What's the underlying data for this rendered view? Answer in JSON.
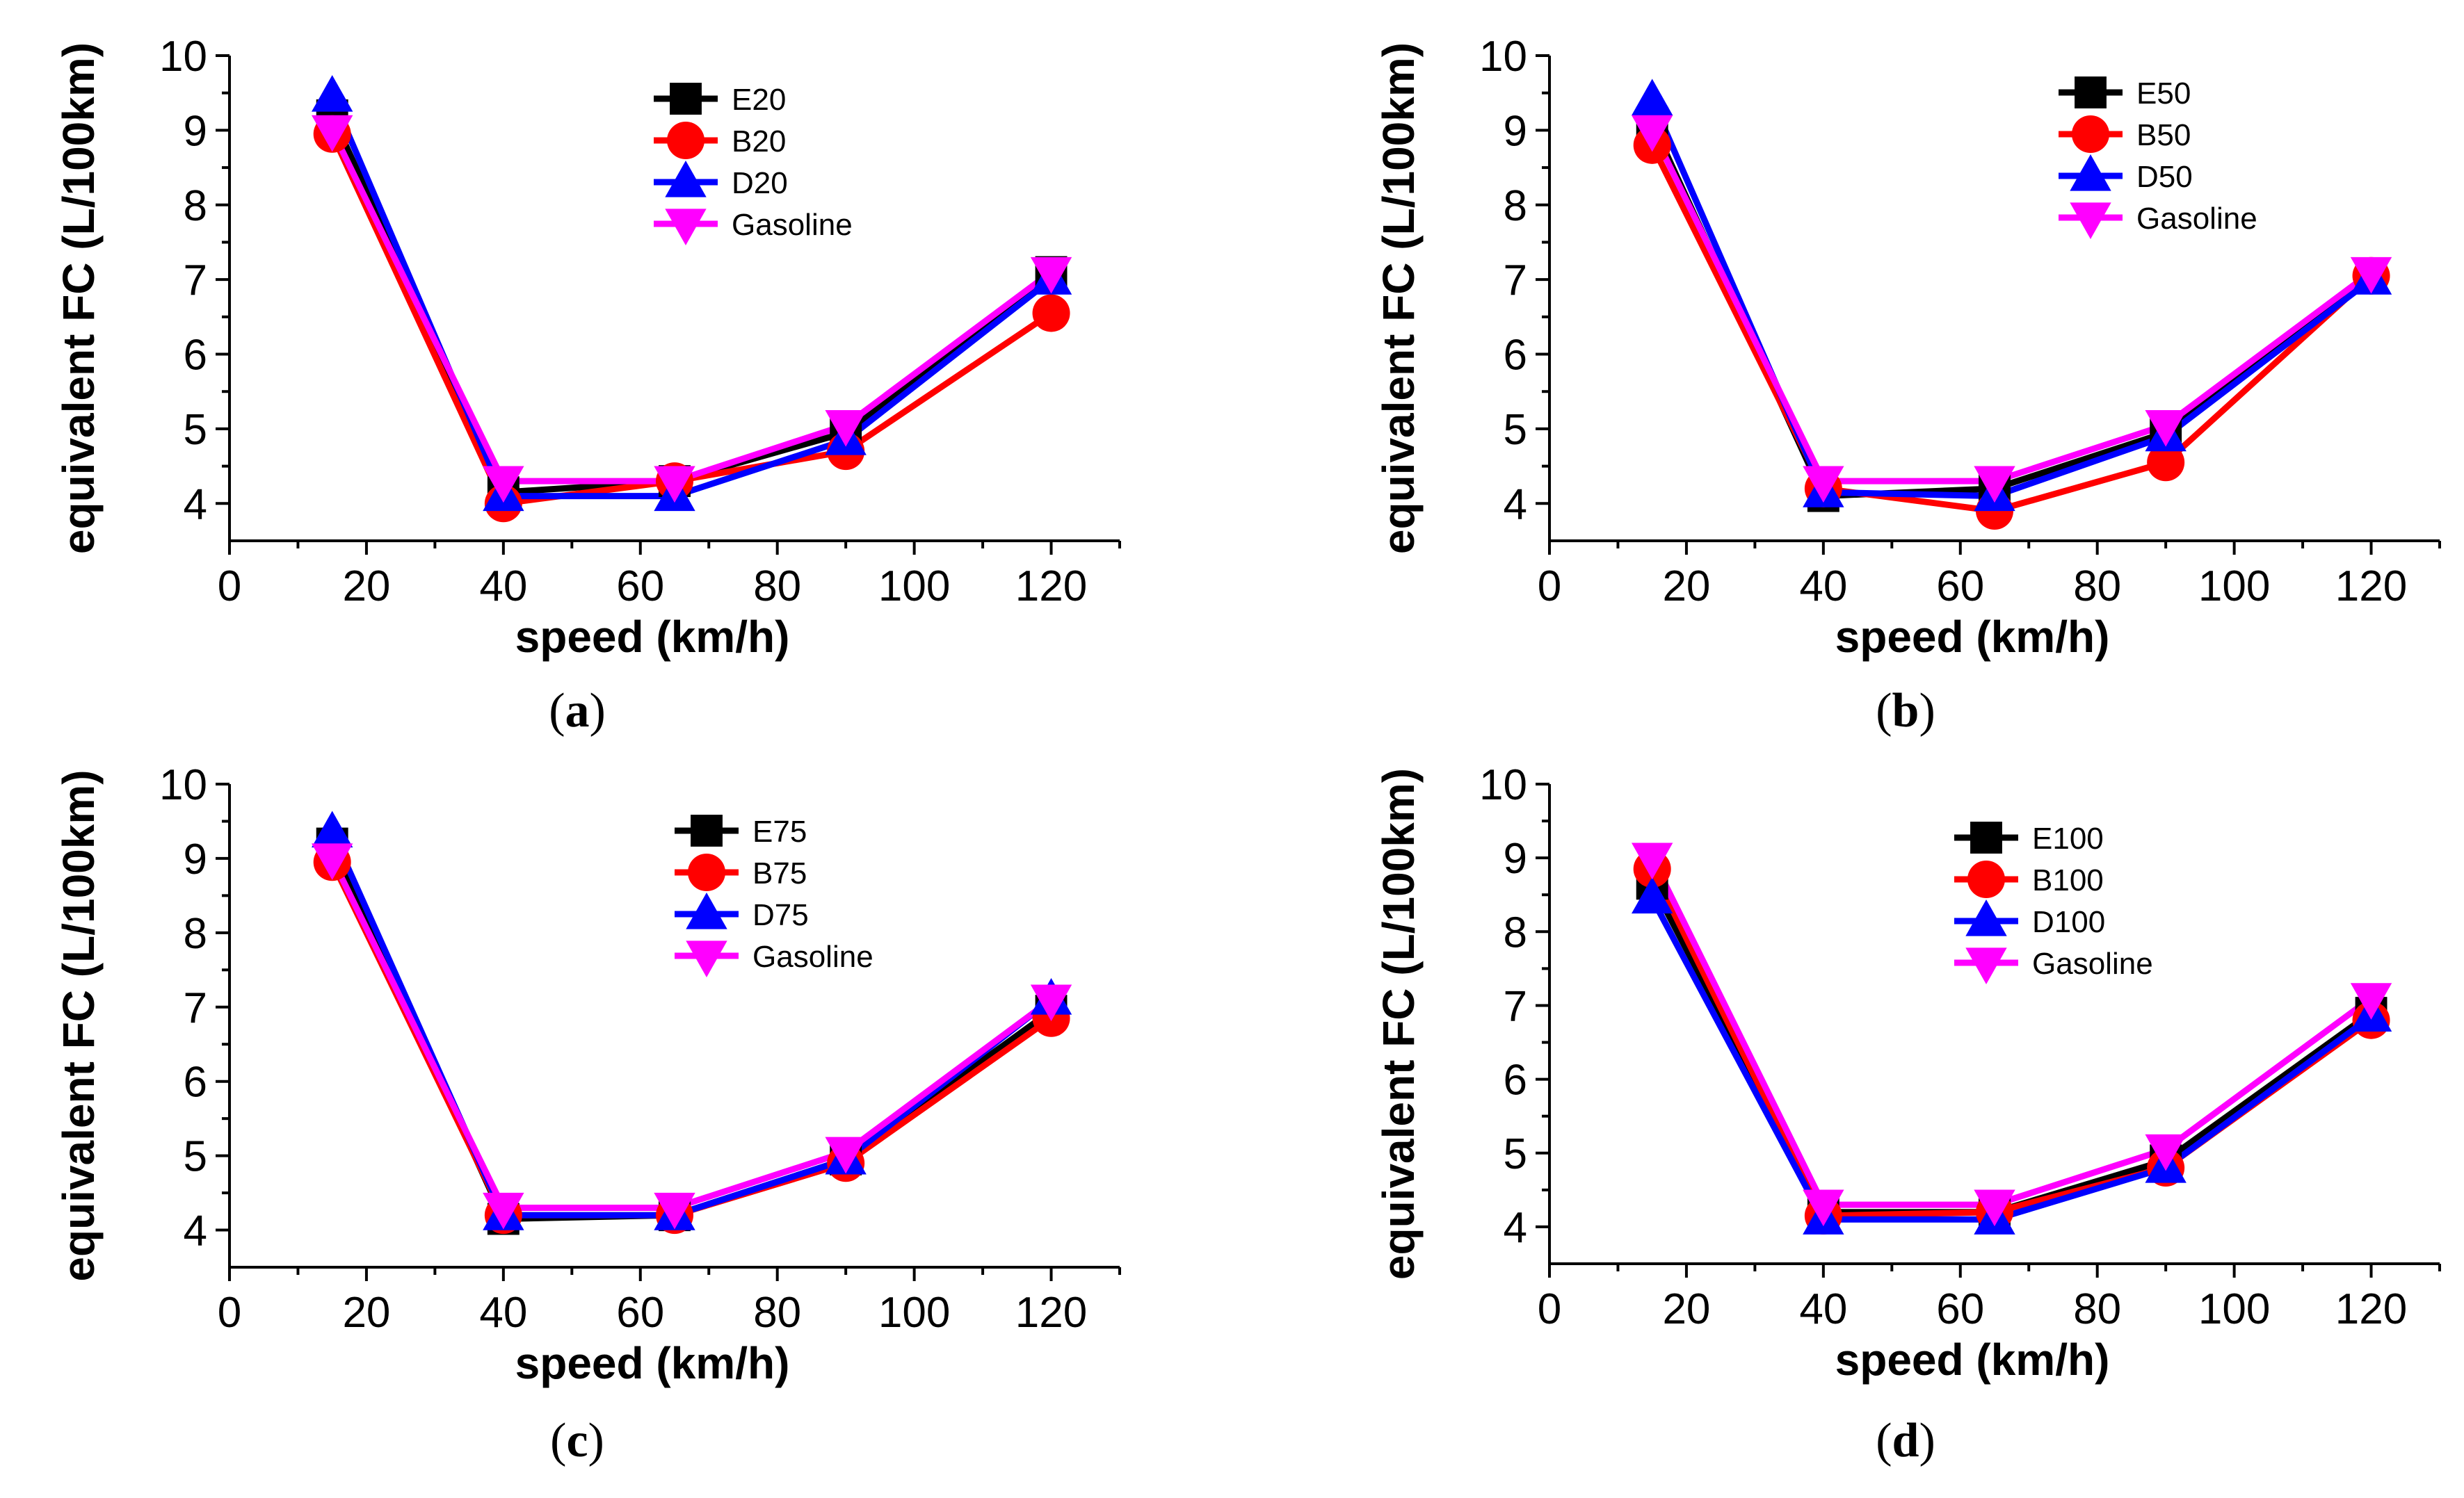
{
  "chart_data": [
    {
      "type": "line",
      "panel": "a",
      "xlabel": "speed (km/h)",
      "ylabel": "equivalent FC (L/100km)",
      "xlim": [
        0,
        130
      ],
      "ylim": [
        3.5,
        10
      ],
      "xticks": [
        0,
        20,
        40,
        60,
        80,
        100,
        120
      ],
      "yticks": [
        4,
        5,
        6,
        7,
        8,
        9,
        10
      ],
      "x": [
        15,
        40,
        65,
        90,
        120
      ],
      "series": [
        {
          "name": "E20",
          "color": "#000000",
          "marker": "square",
          "values": [
            9.2,
            4.15,
            4.3,
            4.95,
            7.1
          ]
        },
        {
          "name": "B20",
          "color": "#ff0000",
          "marker": "circle",
          "values": [
            8.95,
            4.0,
            4.3,
            4.7,
            6.55
          ]
        },
        {
          "name": "D20",
          "color": "#0000ff",
          "marker": "triangle-up",
          "values": [
            9.45,
            4.1,
            4.1,
            4.85,
            7.0
          ]
        },
        {
          "name": "Gasoline",
          "color": "#ff00ff",
          "marker": "triangle-down",
          "values": [
            9.0,
            4.3,
            4.3,
            5.05,
            7.1
          ]
        }
      ]
    },
    {
      "type": "line",
      "panel": "b",
      "xlabel": "speed (km/h)",
      "ylabel": "equivalent FC (L/100km)",
      "xlim": [
        0,
        130
      ],
      "ylim": [
        3.5,
        10
      ],
      "xticks": [
        0,
        20,
        40,
        60,
        80,
        100,
        120
      ],
      "yticks": [
        4,
        5,
        6,
        7,
        8,
        9,
        10
      ],
      "x": [
        15,
        40,
        65,
        90,
        120
      ],
      "series": [
        {
          "name": "E50",
          "color": "#000000",
          "marker": "square",
          "values": [
            9.1,
            4.1,
            4.2,
            4.95,
            7.05
          ]
        },
        {
          "name": "B50",
          "color": "#ff0000",
          "marker": "circle",
          "values": [
            8.8,
            4.2,
            3.9,
            4.55,
            7.05
          ]
        },
        {
          "name": "D50",
          "color": "#0000ff",
          "marker": "triangle-up",
          "values": [
            9.4,
            4.15,
            4.1,
            4.9,
            7.0
          ]
        },
        {
          "name": "Gasoline",
          "color": "#ff00ff",
          "marker": "triangle-down",
          "values": [
            9.0,
            4.3,
            4.3,
            5.05,
            7.1
          ]
        }
      ]
    },
    {
      "type": "line",
      "panel": "c",
      "xlabel": "speed (km/h)",
      "ylabel": "equivalent FC (L/100km)",
      "xlim": [
        0,
        130
      ],
      "ylim": [
        3.5,
        10
      ],
      "xticks": [
        0,
        20,
        40,
        60,
        80,
        100,
        120
      ],
      "yticks": [
        4,
        5,
        6,
        7,
        8,
        9,
        10
      ],
      "x": [
        15,
        40,
        65,
        90,
        120
      ],
      "series": [
        {
          "name": "E75",
          "color": "#000000",
          "marker": "square",
          "values": [
            9.2,
            4.15,
            4.2,
            4.95,
            6.95
          ]
        },
        {
          "name": "B75",
          "color": "#ff0000",
          "marker": "circle",
          "values": [
            8.95,
            4.2,
            4.2,
            4.9,
            6.85
          ]
        },
        {
          "name": "D75",
          "color": "#0000ff",
          "marker": "triangle-up",
          "values": [
            9.35,
            4.2,
            4.2,
            4.95,
            7.1
          ]
        },
        {
          "name": "Gasoline",
          "color": "#ff00ff",
          "marker": "triangle-down",
          "values": [
            9.0,
            4.3,
            4.3,
            5.05,
            7.1
          ]
        }
      ]
    },
    {
      "type": "line",
      "panel": "d",
      "xlabel": "speed (km/h)",
      "ylabel": "equivalent FC (L/100km)",
      "xlim": [
        0,
        130
      ],
      "ylim": [
        3.5,
        10
      ],
      "xticks": [
        0,
        20,
        40,
        60,
        80,
        100,
        120
      ],
      "yticks": [
        4,
        5,
        6,
        7,
        8,
        9,
        10
      ],
      "x": [
        15,
        40,
        65,
        90,
        120
      ],
      "series": [
        {
          "name": "E100",
          "color": "#000000",
          "marker": "square",
          "values": [
            8.65,
            4.2,
            4.2,
            4.9,
            6.9
          ]
        },
        {
          "name": "B100",
          "color": "#ff0000",
          "marker": "circle",
          "values": [
            8.85,
            4.15,
            4.2,
            4.8,
            6.8
          ]
        },
        {
          "name": "D100",
          "color": "#0000ff",
          "marker": "triangle-up",
          "values": [
            8.45,
            4.1,
            4.1,
            4.8,
            6.85
          ]
        },
        {
          "name": "Gasoline",
          "color": "#ff00ff",
          "marker": "triangle-down",
          "values": [
            9.0,
            4.3,
            4.3,
            5.05,
            7.1
          ]
        }
      ]
    }
  ],
  "captions": [
    "(a)",
    "(b)",
    "(c)",
    "(d)"
  ]
}
